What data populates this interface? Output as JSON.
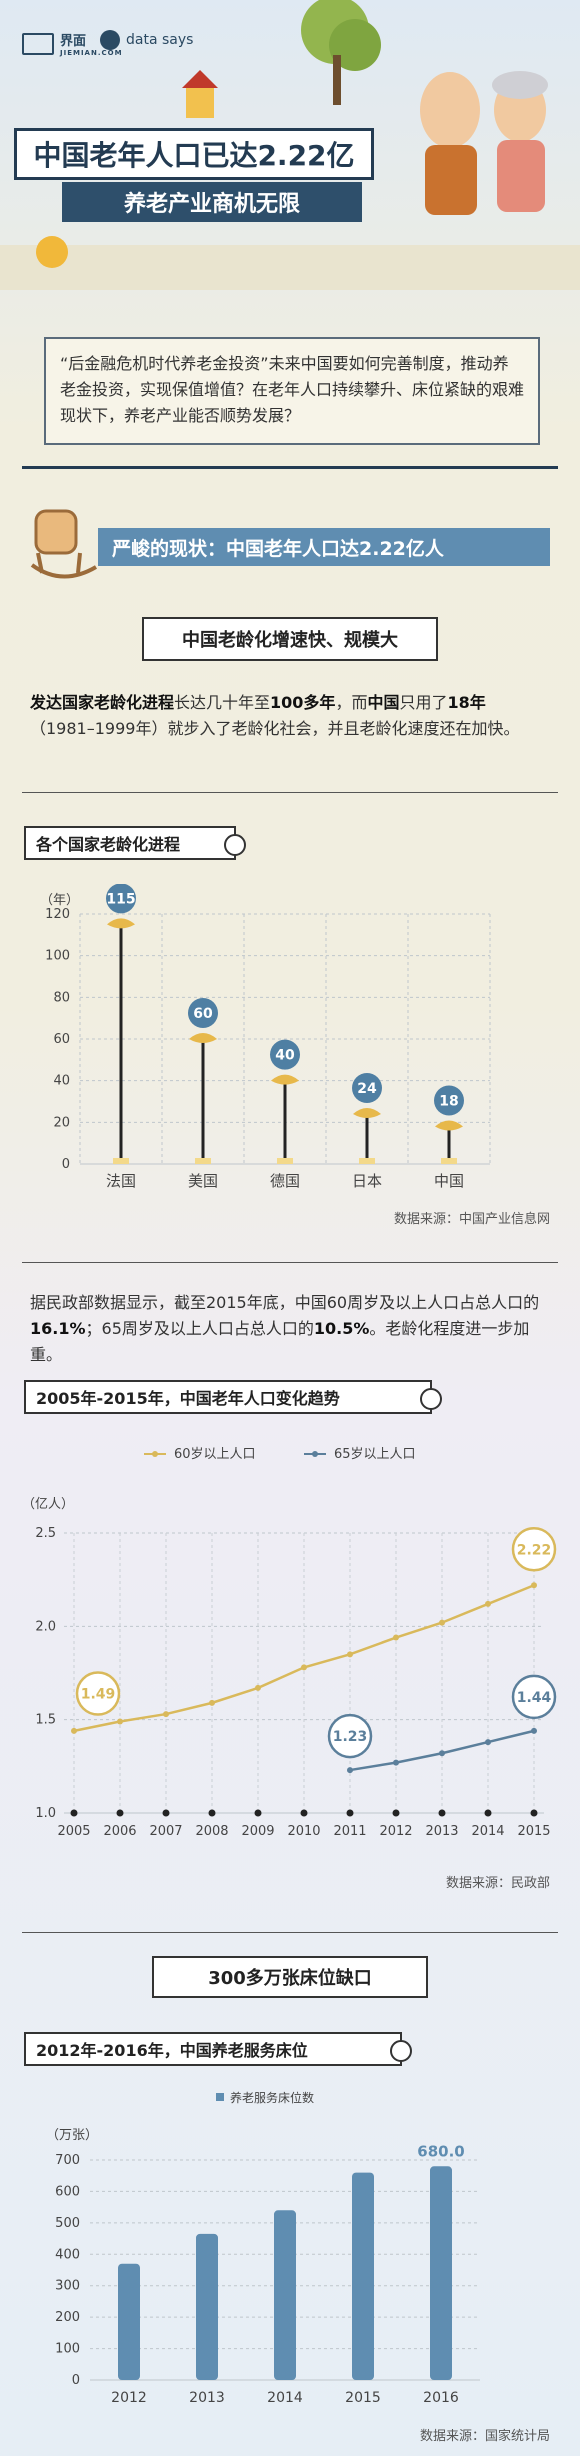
{
  "header": {
    "brand": "界面",
    "brand_sub": "JIEMIAN.COM",
    "brand2": "data says",
    "title": "中国老年人口已达2.22亿",
    "subtitle": "养老产业商机无限"
  },
  "intro": {
    "text": "“后金融危机时代养老金投资”未来中国要如何完善制度，推动养老金投资，实现保值增值？在老年人口持续攀升、床位紧缺的艰难现状下，养老产业能否顺势发展？"
  },
  "section1": {
    "banner": "严峻的现状：中国老年人口达2.22亿人",
    "box_title": "中国老龄化增速快、规模大",
    "para1_a": "发达国家老龄化进程",
    "para1_b": "长达几十年至",
    "para1_c": "100多年",
    "para1_d": "，而",
    "para1_e": "中国",
    "para1_f": "只用了",
    "para1_g": "18年",
    "para1_h": "（1981–1999年）就步入了老龄化社会，并且老龄化速度还在加快。",
    "para2_a": "据民政部数据显示，截至2015年底，中国60周岁及以上人口占总人口的",
    "para2_b": "16.1%",
    "para2_c": "；65周岁及以上人口占总人口的",
    "para2_d": "10.5%",
    "para2_e": "。老龄化程度进一步加重。"
  },
  "section2": {
    "box_title": "300多万张床位缺口"
  },
  "chart_data": [
    {
      "type": "bar",
      "title": "各个国家老龄化进程",
      "ylabel": "（年）",
      "categories": [
        "法国",
        "美国",
        "德国",
        "日本",
        "中国"
      ],
      "values": [
        115,
        60,
        40,
        24,
        18
      ],
      "ylim": [
        0,
        120
      ],
      "yticks": [
        0,
        20,
        40,
        60,
        80,
        100,
        120
      ],
      "source": "数据来源：中国产业信息网",
      "color": "#4f7fa3"
    },
    {
      "type": "line",
      "title": "2005年-2015年，中国老年人口变化趋势",
      "ylabel": "（亿人）",
      "x": [
        "2005",
        "2006",
        "2007",
        "2008",
        "2009",
        "2010",
        "2011",
        "2012",
        "2013",
        "2014",
        "2015"
      ],
      "series": [
        {
          "name": "60岁以上人口",
          "values": [
            1.44,
            1.49,
            1.53,
            1.59,
            1.67,
            1.78,
            1.85,
            1.94,
            2.02,
            2.12,
            2.22
          ],
          "color": "#d9b95b"
        },
        {
          "name": "65岁以上人口",
          "values": [
            null,
            null,
            null,
            null,
            null,
            null,
            1.23,
            1.27,
            1.32,
            1.38,
            1.44
          ],
          "color": "#5b7f9b"
        }
      ],
      "annotations": [
        "1.49",
        "2.22",
        "1.23",
        "1.44"
      ],
      "ylim": [
        1.0,
        2.5
      ],
      "yticks": [
        "1.0",
        "1.5",
        "2.0",
        "2.5"
      ],
      "source": "数据来源：民政部"
    },
    {
      "type": "bar",
      "title": "2012年-2016年，中国养老服务床位",
      "legend": "养老服务床位数",
      "ylabel": "（万张）",
      "categories": [
        "2012",
        "2013",
        "2014",
        "2015",
        "2016"
      ],
      "values": [
        370,
        465,
        540,
        660,
        680
      ],
      "value_label": "680.0",
      "ylim": [
        0,
        700
      ],
      "yticks": [
        0,
        100,
        200,
        300,
        400,
        500,
        600,
        700
      ],
      "source": "数据来源：国家统计局",
      "color": "#5f8db1"
    }
  ]
}
